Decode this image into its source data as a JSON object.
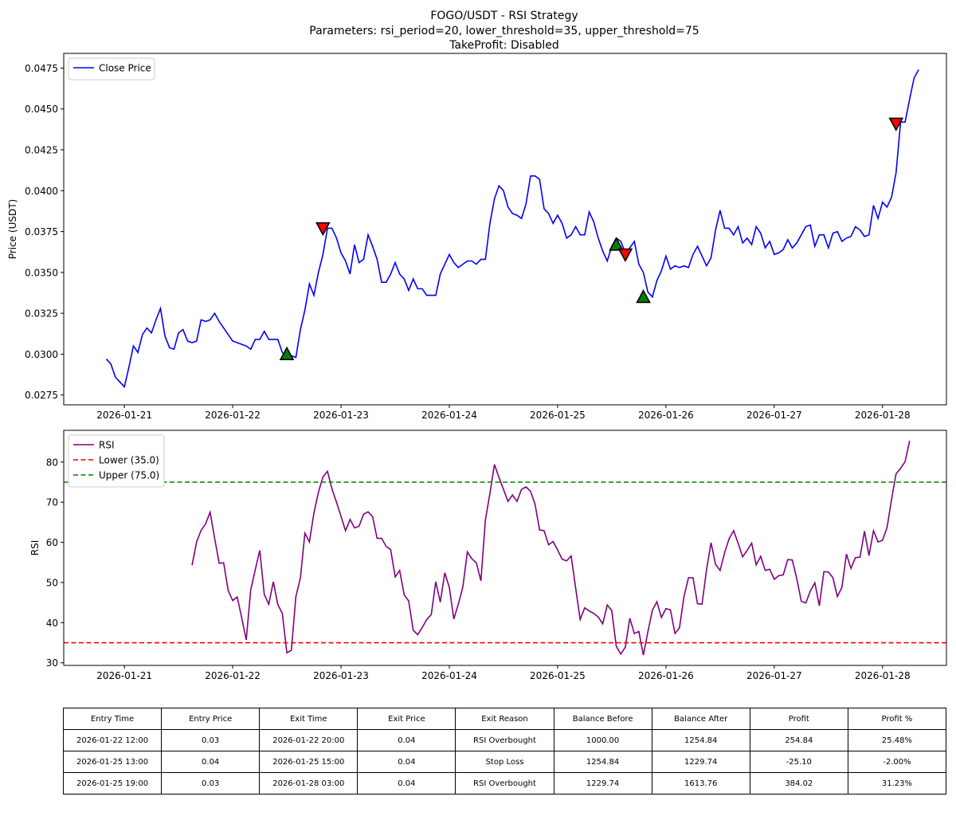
{
  "chart_data": [
    {
      "type": "line",
      "title": "FOGO/USDT - RSI Strategy",
      "subtitle_lines": [
        "Parameters: rsi_period=20, lower_threshold=35, upper_threshold=75",
        "TakeProfit: Disabled"
      ],
      "xlabel": "",
      "ylabel": "Price (USDT)",
      "x_ticks": [
        "2026-01-21",
        "2026-01-22",
        "2026-01-23",
        "2026-01-24",
        "2026-01-25",
        "2026-01-26",
        "2026-01-27",
        "2026-01-28"
      ],
      "y_ticks": [
        "0.0275",
        "0.0300",
        "0.0325",
        "0.0350",
        "0.0375",
        "0.0400",
        "0.0425",
        "0.0450",
        "0.0475"
      ],
      "ylim": [
        0.0269,
        0.0484
      ],
      "xlim_days": [
        -0.56,
        7.59
      ],
      "legend": {
        "position": "upper left",
        "entries": [
          "Close Price"
        ]
      },
      "grid": false,
      "series": [
        {
          "name": "Close Price",
          "color": "#0000ff",
          "x_step_hours": 1,
          "x_start": "2026-01-20 20:00",
          "values": [
            0.0297,
            0.0294,
            0.0286,
            0.0283,
            0.028,
            0.0292,
            0.0305,
            0.0301,
            0.0312,
            0.0316,
            0.0313,
            0.0321,
            0.0328,
            0.0311,
            0.0304,
            0.0303,
            0.0313,
            0.0315,
            0.0308,
            0.0307,
            0.0308,
            0.0321,
            0.032,
            0.0321,
            0.0325,
            0.032,
            0.0316,
            0.0312,
            0.0308,
            0.0307,
            0.0306,
            0.0305,
            0.0303,
            0.0309,
            0.0309,
            0.0314,
            0.0309,
            0.0309,
            0.0309,
            0.0301,
            0.0298,
            0.0299,
            0.0298,
            0.0315,
            0.0327,
            0.0343,
            0.0336,
            0.035,
            0.0361,
            0.0377,
            0.0377,
            0.0371,
            0.0362,
            0.0357,
            0.0349,
            0.0367,
            0.0356,
            0.0358,
            0.0373,
            0.0366,
            0.0358,
            0.0344,
            0.0344,
            0.0349,
            0.0356,
            0.0349,
            0.0346,
            0.0339,
            0.0346,
            0.034,
            0.034,
            0.0336,
            0.0336,
            0.0336,
            0.0349,
            0.0355,
            0.0361,
            0.0356,
            0.0353,
            0.0355,
            0.0357,
            0.0357,
            0.0355,
            0.0358,
            0.0358,
            0.038,
            0.0395,
            0.0403,
            0.04,
            0.039,
            0.0386,
            0.0385,
            0.0383,
            0.0392,
            0.0409,
            0.0409,
            0.0407,
            0.0389,
            0.0386,
            0.038,
            0.0385,
            0.038,
            0.0371,
            0.0373,
            0.0378,
            0.0373,
            0.0373,
            0.0387,
            0.0381,
            0.0371,
            0.0363,
            0.0357,
            0.0366,
            0.0371,
            0.0369,
            0.0362,
            0.0365,
            0.0369,
            0.0355,
            0.035,
            0.0338,
            0.0335,
            0.0345,
            0.0351,
            0.036,
            0.0352,
            0.0354,
            0.0353,
            0.0354,
            0.0353,
            0.0361,
            0.0366,
            0.036,
            0.0354,
            0.0359,
            0.0376,
            0.0388,
            0.0377,
            0.0377,
            0.0373,
            0.0378,
            0.0368,
            0.0371,
            0.0367,
            0.0378,
            0.0374,
            0.0365,
            0.0369,
            0.0361,
            0.0362,
            0.0364,
            0.037,
            0.0365,
            0.0368,
            0.0373,
            0.0378,
            0.0379,
            0.0366,
            0.0373,
            0.0373,
            0.0365,
            0.0374,
            0.0375,
            0.0369,
            0.0371,
            0.0372,
            0.0378,
            0.0376,
            0.0372,
            0.0373,
            0.0391,
            0.0383,
            0.0393,
            0.039,
            0.0396,
            0.0411,
            0.0442,
            0.0442,
            0.0456,
            0.0469,
            0.0474
          ]
        }
      ],
      "markers": [
        {
          "kind": "buy",
          "color": "#008000",
          "x": "2026-01-22 12:00",
          "y": 0.03
        },
        {
          "kind": "sell",
          "color": "#ff0000",
          "x": "2026-01-22 20:00",
          "y": 0.0377
        },
        {
          "kind": "buy",
          "color": "#008000",
          "x": "2026-01-25 13:00",
          "y": 0.0367
        },
        {
          "kind": "sell",
          "color": "#ff0000",
          "x": "2026-01-25 15:00",
          "y": 0.0361
        },
        {
          "kind": "buy",
          "color": "#008000",
          "x": "2026-01-25 19:00",
          "y": 0.0335
        },
        {
          "kind": "sell",
          "color": "#ff0000",
          "x": "2026-01-28 03:00",
          "y": 0.0441
        }
      ]
    },
    {
      "type": "line",
      "xlabel": "",
      "ylabel": "RSI",
      "x_ticks": [
        "2026-01-21",
        "2026-01-22",
        "2026-01-23",
        "2026-01-24",
        "2026-01-25",
        "2026-01-26",
        "2026-01-27",
        "2026-01-28"
      ],
      "y_ticks": [
        "30",
        "40",
        "50",
        "60",
        "70",
        "80"
      ],
      "ylim": [
        29.35,
        87.9
      ],
      "xlim_days": [
        -0.56,
        7.59
      ],
      "legend": {
        "position": "upper left",
        "entries": [
          "RSI",
          "Lower (35.0)",
          "Upper (75.0)"
        ]
      },
      "grid": false,
      "series": [
        {
          "name": "RSI",
          "color": "#800080",
          "x_step_hours": 1,
          "x_start": "2026-01-21 15:00",
          "values": [
            54.3,
            60.1,
            63.0,
            64.6,
            67.5,
            61.0,
            54.8,
            54.9,
            48.0,
            45.5,
            46.4,
            41.2,
            35.7,
            48.2,
            53.2,
            58.0,
            47.0,
            44.6,
            50.2,
            44.5,
            42.3,
            32.5,
            33.1,
            46.5,
            51.1,
            62.3,
            60.1,
            67.3,
            72.5,
            76.3,
            77.7,
            73.3,
            70.0,
            66.5,
            62.9,
            65.7,
            63.6,
            64.0,
            67.0,
            67.6,
            66.4,
            61.0,
            61.0,
            59.0,
            58.2,
            51.4,
            53.0,
            46.9,
            45.4,
            38.1,
            37.0,
            38.8,
            40.8,
            42.0,
            50.2,
            45.1,
            52.4,
            48.8,
            40.9,
            44.6,
            48.9,
            57.6,
            55.9,
            54.9,
            50.4,
            65.6,
            72.2,
            79.4,
            76.2,
            73.2,
            70.2,
            71.8,
            70.2,
            73.2,
            73.8,
            72.7,
            69.5,
            63.1,
            62.9,
            59.4,
            60.2,
            58.1,
            55.8,
            55.4,
            56.6,
            48.6,
            40.8,
            43.7,
            42.9,
            42.3,
            41.4,
            39.7,
            44.4,
            43.0,
            34.1,
            32.2,
            33.9,
            41.1,
            37.3,
            37.8,
            31.9,
            37.7,
            43.1,
            45.2,
            41.3,
            43.5,
            43.2,
            37.3,
            38.7,
            46.5,
            51.2,
            51.2,
            44.7,
            44.6,
            53.2,
            59.9,
            54.5,
            53.0,
            57.4,
            60.9,
            62.9,
            59.8,
            56.4,
            58.0,
            59.8,
            54.4,
            56.5,
            53.0,
            53.3,
            50.8,
            51.7,
            51.9,
            55.7,
            55.6,
            50.9,
            45.3,
            44.9,
            47.9,
            49.9,
            44.2,
            52.7,
            52.6,
            51.2,
            46.5,
            48.8,
            57.1,
            53.5,
            56.2,
            56.3,
            62.8,
            56.7,
            62.9,
            60.1,
            60.5,
            63.7,
            70.7,
            77.1,
            78.4,
            80.1,
            85.3
          ]
        },
        {
          "name": "Lower (35.0)",
          "color": "#ff0000",
          "style": "dashed",
          "y": 35.0
        },
        {
          "name": "Upper (75.0)",
          "color": "#008000",
          "style": "dashed",
          "y": 75.0
        }
      ]
    }
  ],
  "trades_table": {
    "headers": [
      "Entry Time",
      "Entry Price",
      "Exit Time",
      "Exit Price",
      "Exit Reason",
      "Balance Before",
      "Balance After",
      "Profit",
      "Profit %"
    ],
    "rows": [
      [
        "2026-01-22 12:00",
        "0.03",
        "2026-01-22 20:00",
        "0.04",
        "RSI Overbought",
        "1000.00",
        "1254.84",
        "254.84",
        "25.48%"
      ],
      [
        "2026-01-25 13:00",
        "0.04",
        "2026-01-25 15:00",
        "0.04",
        "Stop Loss",
        "1254.84",
        "1229.74",
        "-25.10",
        "-2.00%"
      ],
      [
        "2026-01-25 19:00",
        "0.03",
        "2026-01-28 03:00",
        "0.04",
        "RSI Overbought",
        "1229.74",
        "1613.76",
        "384.02",
        "31.23%"
      ]
    ]
  }
}
